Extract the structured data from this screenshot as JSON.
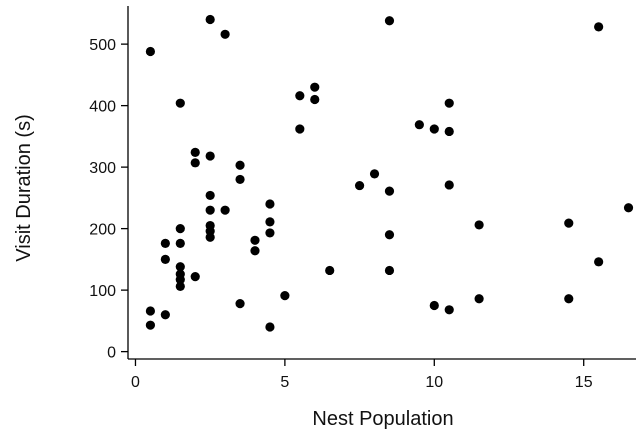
{
  "chart_data": {
    "type": "scatter",
    "title": "",
    "xlabel": "Nest Population",
    "ylabel": "Visit Duration (s)",
    "xlim": [
      -0.25,
      16.75
    ],
    "ylim": [
      -12,
      562
    ],
    "xticks": [
      0,
      5,
      10,
      15
    ],
    "yticks": [
      0,
      100,
      200,
      300,
      400,
      500
    ],
    "grid": false,
    "legend": "none",
    "marker_color": "#000000",
    "points": [
      [
        0.5,
        488
      ],
      [
        0.5,
        66
      ],
      [
        0.5,
        43
      ],
      [
        1,
        176
      ],
      [
        1,
        150
      ],
      [
        1,
        60
      ],
      [
        1.5,
        404
      ],
      [
        1.5,
        200
      ],
      [
        1.5,
        176
      ],
      [
        1.5,
        138
      ],
      [
        1.5,
        126
      ],
      [
        1.5,
        117
      ],
      [
        1.5,
        106
      ],
      [
        2,
        324
      ],
      [
        2,
        307
      ],
      [
        2,
        122
      ],
      [
        2.5,
        540
      ],
      [
        2.5,
        318
      ],
      [
        2.5,
        254
      ],
      [
        2.5,
        230
      ],
      [
        2.5,
        205
      ],
      [
        2.5,
        196
      ],
      [
        2.5,
        186
      ],
      [
        3,
        516
      ],
      [
        3,
        230
      ],
      [
        3.5,
        303
      ],
      [
        3.5,
        280
      ],
      [
        3.5,
        78
      ],
      [
        4,
        181
      ],
      [
        4,
        164
      ],
      [
        4.5,
        240
      ],
      [
        4.5,
        211
      ],
      [
        4.5,
        193
      ],
      [
        4.5,
        40
      ],
      [
        5,
        91
      ],
      [
        5.5,
        416
      ],
      [
        5.5,
        362
      ],
      [
        6,
        430
      ],
      [
        6,
        410
      ],
      [
        6.5,
        132
      ],
      [
        7.5,
        270
      ],
      [
        8,
        289
      ],
      [
        8.5,
        538
      ],
      [
        8.5,
        261
      ],
      [
        8.5,
        190
      ],
      [
        8.5,
        132
      ],
      [
        9.5,
        369
      ],
      [
        10,
        362
      ],
      [
        10,
        75
      ],
      [
        10.5,
        404
      ],
      [
        10.5,
        358
      ],
      [
        10.5,
        271
      ],
      [
        10.5,
        68
      ],
      [
        11.5,
        206
      ],
      [
        11.5,
        86
      ],
      [
        14.5,
        209
      ],
      [
        14.5,
        86
      ],
      [
        15.5,
        528
      ],
      [
        15.5,
        146
      ],
      [
        16.5,
        234
      ]
    ]
  }
}
